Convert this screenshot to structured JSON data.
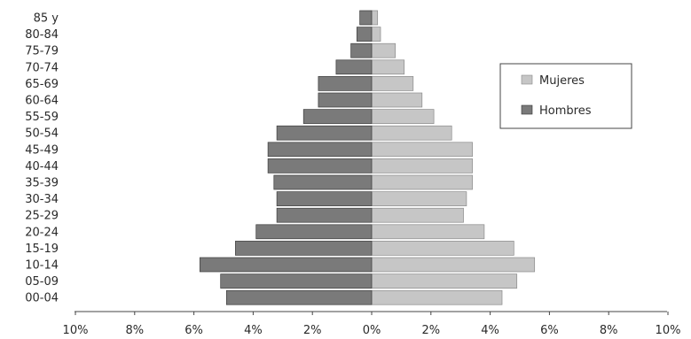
{
  "chart_data": {
    "type": "bar",
    "orientation": "horizontal",
    "categories": [
      "00-04",
      "05-09",
      "10-14",
      "15-19",
      "20-24",
      "25-29",
      "30-34",
      "35-39",
      "40-44",
      "45-49",
      "50-54",
      "55-59",
      "60-64",
      "65-69",
      "70-74",
      "75-79",
      "80-84",
      "85 y"
    ],
    "series": [
      {
        "name": "Mujeres",
        "side": "right",
        "color": "#c6c6c6",
        "values": [
          4.4,
          4.9,
          5.5,
          4.8,
          3.8,
          3.1,
          3.2,
          3.4,
          3.4,
          3.4,
          2.7,
          2.1,
          1.7,
          1.4,
          1.1,
          0.8,
          0.3,
          0.2
        ]
      },
      {
        "name": "Hombres",
        "side": "left",
        "color": "#7a7a7a",
        "values": [
          4.9,
          5.1,
          5.8,
          4.6,
          3.9,
          3.2,
          3.2,
          3.3,
          3.5,
          3.5,
          3.2,
          2.3,
          1.8,
          1.8,
          1.2,
          0.7,
          0.5,
          0.4
        ]
      }
    ],
    "xlim": [
      -10,
      10
    ],
    "xticks": [
      -10,
      -8,
      -6,
      -4,
      -2,
      0,
      2,
      4,
      6,
      8,
      10
    ],
    "xtick_labels": [
      "10%",
      "8%",
      "6%",
      "4%",
      "2%",
      "0%",
      "2%",
      "4%",
      "6%",
      "8%",
      "10%"
    ],
    "legend_position": "right",
    "grid": false
  }
}
